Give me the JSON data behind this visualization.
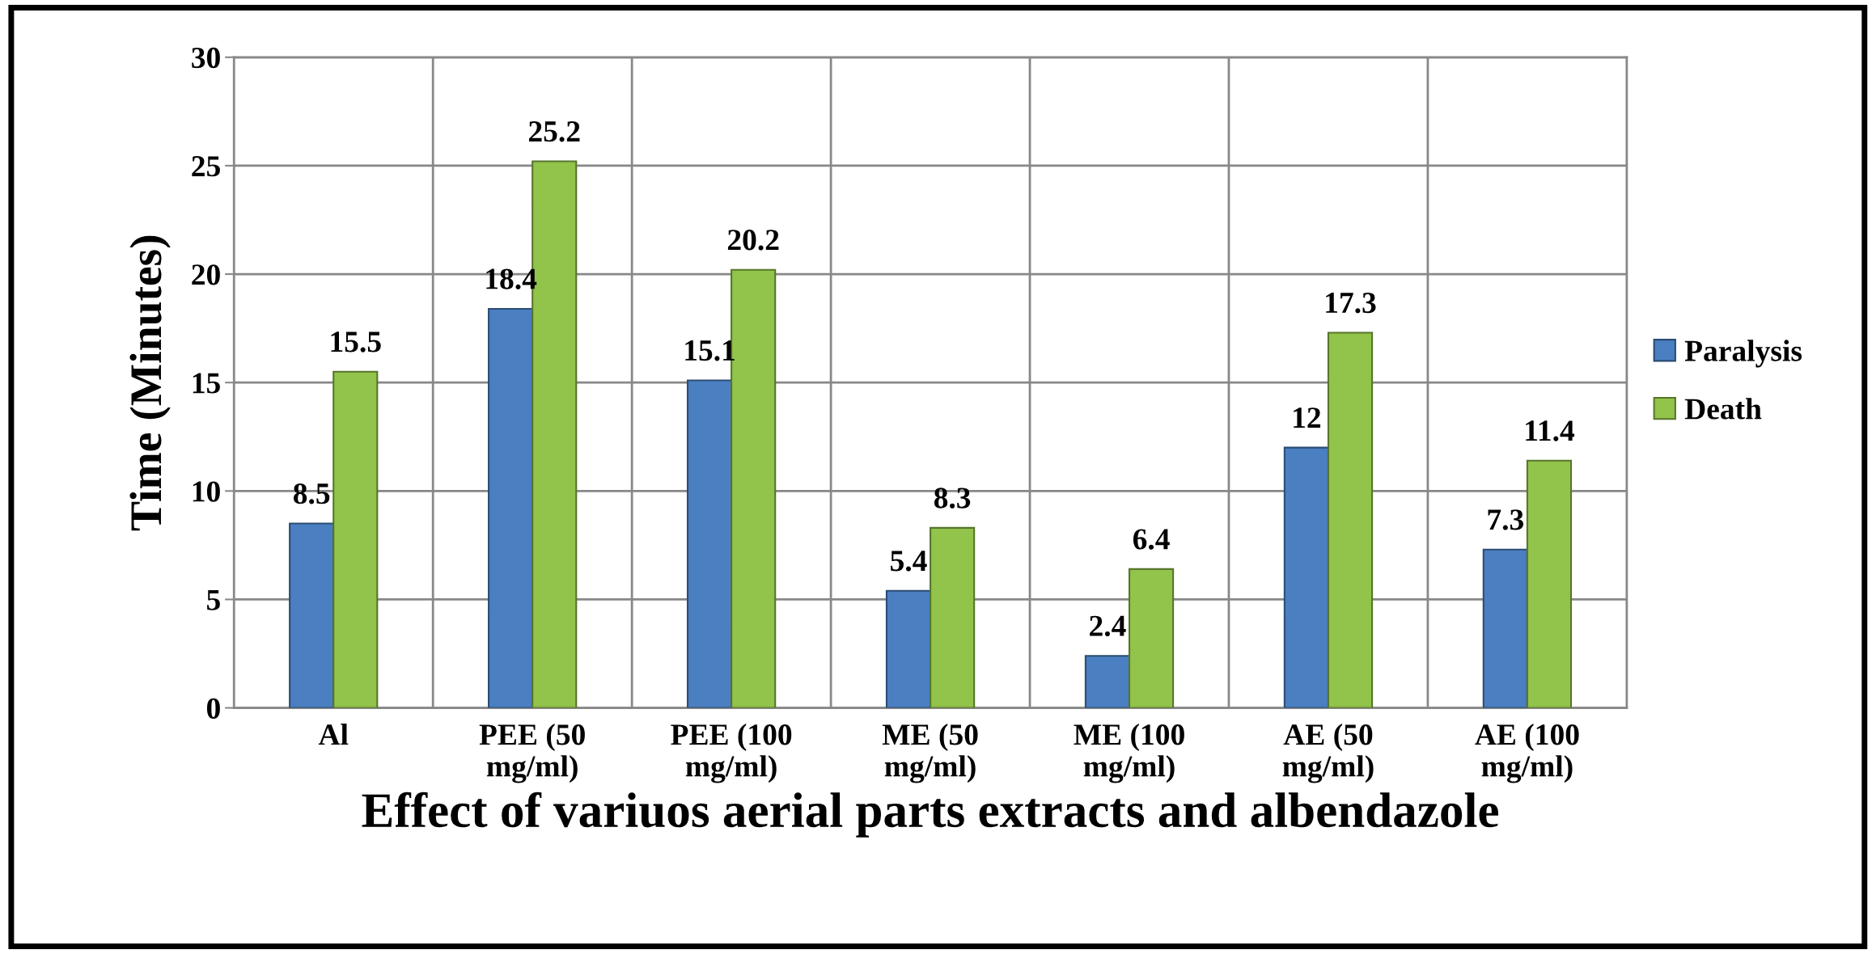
{
  "chart_data": {
    "type": "bar",
    "xlabel": "Effect of variuos aerial parts extracts and albendazole",
    "ylabel": "Time (Minutes)",
    "categories": [
      "Al",
      "PEE (50\nmg/ml)",
      "PEE (100\nmg/ml)",
      "ME (50\nmg/ml)",
      "ME (100\nmg/ml)",
      "AE (50\nmg/ml)",
      "AE (100\nmg/ml)"
    ],
    "series": [
      {
        "name": "Paralysis",
        "color": "#4a7fc1",
        "values": [
          8.5,
          18.4,
          15.1,
          5.4,
          2.4,
          12,
          7.3
        ]
      },
      {
        "name": "Death",
        "color": "#92c34a",
        "values": [
          15.5,
          25.2,
          20.2,
          8.3,
          6.4,
          17.3,
          11.4
        ]
      }
    ],
    "ylim": [
      0,
      30
    ],
    "yticks": [
      0,
      5,
      10,
      15,
      20,
      25,
      30
    ],
    "grid": true,
    "legend": "right",
    "data_labels": true
  }
}
